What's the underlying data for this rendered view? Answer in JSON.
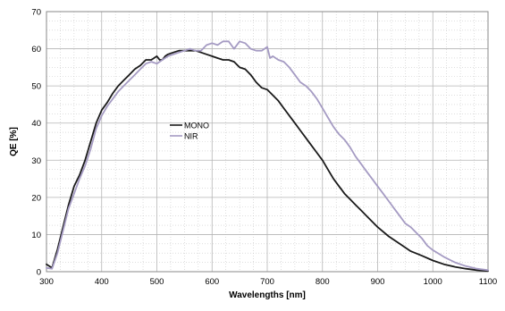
{
  "chart_data": {
    "type": "line",
    "title": "",
    "xlabel": "Wavelengths [nm]",
    "ylabel": "QE [%]",
    "xlim": [
      300,
      1100
    ],
    "ylim": [
      0,
      70
    ],
    "x_ticks": [
      300,
      400,
      500,
      600,
      700,
      800,
      900,
      1000,
      1100
    ],
    "x_tick_labels": [
      "300",
      "400",
      "500",
      "600",
      "700",
      "800",
      "900",
      "1000",
      "1100"
    ],
    "y_ticks": [
      0,
      10,
      20,
      30,
      40,
      50,
      60,
      70
    ],
    "y_tick_labels": [
      "0",
      "10",
      "20",
      "30",
      "40",
      "50",
      "60",
      "70"
    ],
    "grid": "major solid, minor dotted",
    "legend_placement": "center-left",
    "series": [
      {
        "name": "MONO",
        "color": "#1a1a1a",
        "points": [
          [
            300,
            2
          ],
          [
            310,
            1
          ],
          [
            320,
            6
          ],
          [
            330,
            12
          ],
          [
            340,
            18
          ],
          [
            350,
            23
          ],
          [
            360,
            26
          ],
          [
            370,
            30
          ],
          [
            380,
            35
          ],
          [
            390,
            40
          ],
          [
            400,
            43.5
          ],
          [
            410,
            45.5
          ],
          [
            420,
            48
          ],
          [
            430,
            50
          ],
          [
            440,
            51.5
          ],
          [
            450,
            53
          ],
          [
            460,
            54.5
          ],
          [
            470,
            55.5
          ],
          [
            480,
            57
          ],
          [
            490,
            57
          ],
          [
            500,
            58
          ],
          [
            505,
            57
          ],
          [
            510,
            57
          ],
          [
            515,
            58
          ],
          [
            520,
            58.5
          ],
          [
            530,
            59
          ],
          [
            540,
            59.5
          ],
          [
            550,
            59.5
          ],
          [
            560,
            59.5
          ],
          [
            570,
            59.5
          ],
          [
            580,
            59
          ],
          [
            590,
            58.5
          ],
          [
            600,
            58
          ],
          [
            610,
            57.5
          ],
          [
            620,
            57
          ],
          [
            630,
            57
          ],
          [
            640,
            56.5
          ],
          [
            650,
            55
          ],
          [
            660,
            54.5
          ],
          [
            670,
            53
          ],
          [
            680,
            51
          ],
          [
            690,
            49.5
          ],
          [
            700,
            49
          ],
          [
            710,
            47.5
          ],
          [
            720,
            46
          ],
          [
            730,
            44
          ],
          [
            740,
            42
          ],
          [
            750,
            40
          ],
          [
            760,
            38
          ],
          [
            770,
            36
          ],
          [
            780,
            34
          ],
          [
            790,
            32
          ],
          [
            800,
            30
          ],
          [
            810,
            27.5
          ],
          [
            820,
            25
          ],
          [
            830,
            23
          ],
          [
            840,
            21
          ],
          [
            850,
            19.5
          ],
          [
            860,
            18
          ],
          [
            870,
            16.5
          ],
          [
            880,
            15
          ],
          [
            890,
            13.5
          ],
          [
            900,
            12
          ],
          [
            920,
            9.5
          ],
          [
            940,
            7.5
          ],
          [
            960,
            5.5
          ],
          [
            980,
            4.3
          ],
          [
            1000,
            3
          ],
          [
            1020,
            2
          ],
          [
            1040,
            1.3
          ],
          [
            1060,
            0.8
          ],
          [
            1080,
            0.4
          ],
          [
            1100,
            0.2
          ]
        ]
      },
      {
        "name": "NIR",
        "color": "#a59bc3",
        "points": [
          [
            300,
            1
          ],
          [
            310,
            0.8
          ],
          [
            320,
            5
          ],
          [
            330,
            11
          ],
          [
            340,
            17
          ],
          [
            350,
            21
          ],
          [
            360,
            25
          ],
          [
            370,
            28.5
          ],
          [
            380,
            33
          ],
          [
            390,
            38.5
          ],
          [
            400,
            42
          ],
          [
            410,
            44.5
          ],
          [
            420,
            46.5
          ],
          [
            430,
            48.5
          ],
          [
            440,
            50
          ],
          [
            450,
            51.5
          ],
          [
            460,
            53
          ],
          [
            470,
            54.5
          ],
          [
            480,
            56
          ],
          [
            490,
            56.5
          ],
          [
            500,
            56
          ],
          [
            510,
            57
          ],
          [
            520,
            58
          ],
          [
            530,
            58.5
          ],
          [
            540,
            59
          ],
          [
            550,
            59.5
          ],
          [
            560,
            60
          ],
          [
            570,
            59.5
          ],
          [
            580,
            59.5
          ],
          [
            590,
            61
          ],
          [
            600,
            61.5
          ],
          [
            610,
            61
          ],
          [
            620,
            62
          ],
          [
            630,
            62
          ],
          [
            640,
            60
          ],
          [
            650,
            62
          ],
          [
            660,
            61.5
          ],
          [
            670,
            60
          ],
          [
            680,
            59.5
          ],
          [
            690,
            59.5
          ],
          [
            700,
            60.5
          ],
          [
            705,
            57.5
          ],
          [
            710,
            58
          ],
          [
            720,
            57
          ],
          [
            730,
            56.5
          ],
          [
            740,
            55
          ],
          [
            750,
            53
          ],
          [
            760,
            51
          ],
          [
            770,
            50
          ],
          [
            780,
            48.5
          ],
          [
            790,
            46.5
          ],
          [
            800,
            44
          ],
          [
            810,
            41.5
          ],
          [
            820,
            39
          ],
          [
            830,
            37
          ],
          [
            840,
            35.5
          ],
          [
            850,
            33.5
          ],
          [
            860,
            31
          ],
          [
            870,
            29
          ],
          [
            880,
            27
          ],
          [
            890,
            25
          ],
          [
            900,
            23
          ],
          [
            910,
            21
          ],
          [
            920,
            19
          ],
          [
            930,
            17
          ],
          [
            940,
            15
          ],
          [
            950,
            13
          ],
          [
            960,
            12
          ],
          [
            970,
            10.5
          ],
          [
            980,
            9
          ],
          [
            990,
            7
          ],
          [
            1000,
            5.8
          ],
          [
            1020,
            4
          ],
          [
            1040,
            2.5
          ],
          [
            1060,
            1.5
          ],
          [
            1080,
            0.8
          ],
          [
            1100,
            0.4
          ]
        ]
      }
    ]
  }
}
